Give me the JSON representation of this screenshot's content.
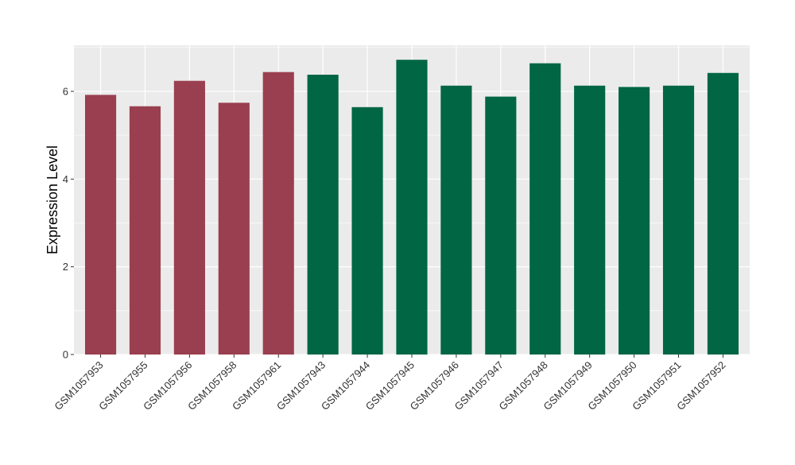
{
  "chart_data": {
    "type": "bar",
    "title": "",
    "xlabel": "",
    "ylabel": "Expression Level",
    "ylim": [
      0,
      7.05
    ],
    "xlim": [
      0.4,
      15.6
    ],
    "yticks": [
      0,
      2,
      4,
      6
    ],
    "yminor": [
      1,
      3,
      5,
      7
    ],
    "grid": true,
    "legend": "none",
    "panel_background": "#EBEBEB",
    "grid_color": "#FFFFFF",
    "categories": [
      "GSM1057953",
      "GSM1057955",
      "GSM1057956",
      "GSM1057958",
      "GSM1057961",
      "GSM1057943",
      "GSM1057944",
      "GSM1057945",
      "GSM1057946",
      "GSM1057947",
      "GSM1057948",
      "GSM1057949",
      "GSM1057950",
      "GSM1057951",
      "GSM1057952"
    ],
    "values": [
      5.92,
      5.66,
      6.24,
      5.74,
      6.44,
      6.38,
      5.64,
      6.72,
      6.13,
      5.88,
      6.64,
      6.13,
      6.1,
      6.13,
      6.42
    ],
    "colors": [
      "#9A3F4F",
      "#9A3F4F",
      "#9A3F4F",
      "#9A3F4F",
      "#9A3F4F",
      "#006644",
      "#006644",
      "#006644",
      "#006644",
      "#006644",
      "#006644",
      "#006644",
      "#006644",
      "#006644",
      "#006644"
    ]
  }
}
